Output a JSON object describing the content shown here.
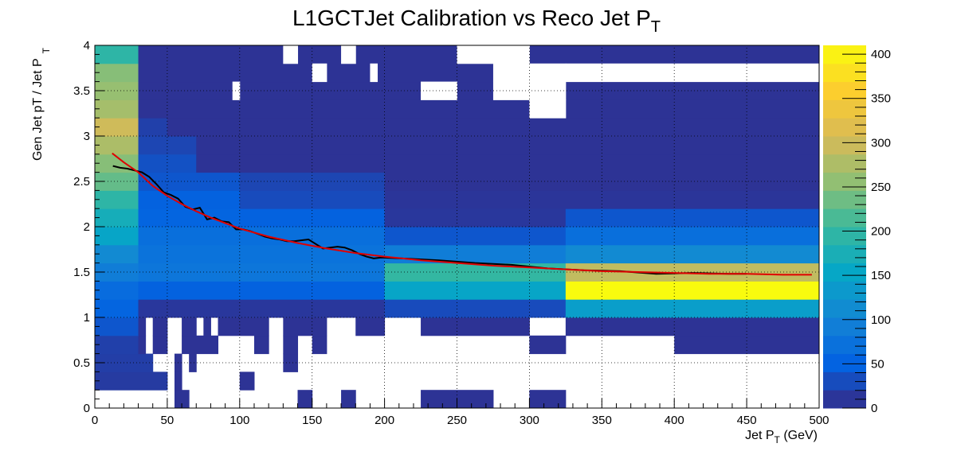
{
  "chart_data": {
    "type": "heatmap",
    "title": "L1GCTJet Calibration vs Reco Jet P",
    "title_subscript": "T",
    "xlabel": "Jet P",
    "xlabel_subscript": "T",
    "xlabel_unit": " (GeV)",
    "ylabel": "Gen Jet pT / Jet P",
    "ylabel_subscript": "T",
    "xlim": [
      0,
      500
    ],
    "ylim": [
      0,
      4
    ],
    "x_ticks": [
      "0",
      "50",
      "100",
      "150",
      "200",
      "250",
      "300",
      "350",
      "400",
      "450",
      "500"
    ],
    "y_ticks": [
      "0",
      "0.5",
      "1",
      "1.5",
      "2",
      "2.5",
      "3",
      "3.5",
      "4"
    ],
    "z_ticks": [
      "0",
      "50",
      "100",
      "150",
      "200",
      "250",
      "300",
      "350",
      "400"
    ],
    "zlim": [
      0,
      410
    ],
    "grid": true,
    "colors": {
      "palette": [
        "#352a87",
        "#0363e1",
        "#1485d4",
        "#06a7c6",
        "#38b99e",
        "#92bf73",
        "#d9ba56",
        "#fcce2e",
        "#f9fb0e"
      ],
      "profile_line": "#000000",
      "fit_line": "#e00000"
    },
    "cells": [
      [
        0,
        10,
        0,
        0.2,
        0
      ],
      [
        10,
        30,
        0,
        0.2,
        0
      ],
      [
        30,
        55,
        0,
        0.2,
        0
      ],
      [
        55,
        65,
        0,
        0.2,
        8
      ],
      [
        65,
        140,
        0,
        0.2,
        0
      ],
      [
        140,
        150,
        0,
        0.2,
        8
      ],
      [
        150,
        170,
        0,
        0.2,
        0
      ],
      [
        170,
        180,
        0,
        0.2,
        8
      ],
      [
        180,
        225,
        0,
        0.2,
        0
      ],
      [
        225,
        275,
        0,
        0.2,
        8
      ],
      [
        275,
        300,
        0,
        0.2,
        0
      ],
      [
        300,
        325,
        0,
        0.2,
        8
      ],
      [
        325,
        500,
        0,
        0.2,
        0
      ],
      [
        0,
        50,
        0.2,
        0.4,
        15
      ],
      [
        50,
        55,
        0.2,
        0.4,
        0
      ],
      [
        55,
        60,
        0.2,
        0.4,
        8
      ],
      [
        60,
        100,
        0.2,
        0.4,
        0
      ],
      [
        100,
        110,
        0.2,
        0.4,
        8
      ],
      [
        110,
        500,
        0.2,
        0.4,
        0
      ],
      [
        0,
        40,
        0.4,
        0.6,
        18
      ],
      [
        40,
        55,
        0.4,
        0.6,
        0
      ],
      [
        55,
        60,
        0.4,
        0.6,
        8
      ],
      [
        60,
        65,
        0.4,
        0.6,
        0
      ],
      [
        65,
        70,
        0.4,
        0.6,
        8
      ],
      [
        70,
        130,
        0.4,
        0.6,
        0
      ],
      [
        130,
        140,
        0.4,
        0.6,
        8
      ],
      [
        140,
        500,
        0.4,
        0.6,
        0
      ],
      [
        0,
        30,
        0.6,
        0.8,
        20
      ],
      [
        30,
        35,
        0.6,
        0.8,
        8
      ],
      [
        35,
        40,
        0.6,
        0.8,
        0
      ],
      [
        40,
        50,
        0.6,
        0.8,
        8
      ],
      [
        50,
        60,
        0.6,
        0.8,
        0
      ],
      [
        60,
        85,
        0.6,
        0.8,
        8
      ],
      [
        85,
        110,
        0.6,
        0.8,
        0
      ],
      [
        110,
        120,
        0.6,
        0.8,
        8
      ],
      [
        120,
        130,
        0.6,
        0.8,
        0
      ],
      [
        130,
        140,
        0.6,
        0.8,
        8
      ],
      [
        140,
        150,
        0.6,
        0.8,
        0
      ],
      [
        150,
        160,
        0.6,
        0.8,
        8
      ],
      [
        160,
        200,
        0.6,
        0.8,
        0
      ],
      [
        200,
        300,
        0.6,
        0.8,
        0
      ],
      [
        300,
        325,
        0.6,
        0.8,
        8
      ],
      [
        325,
        400,
        0.6,
        0.8,
        0
      ],
      [
        400,
        500,
        0.6,
        0.8,
        8
      ],
      [
        0,
        30,
        0.8,
        1.0,
        40
      ],
      [
        30,
        35,
        0.8,
        1.0,
        8
      ],
      [
        35,
        40,
        0.8,
        1.0,
        0
      ],
      [
        40,
        50,
        0.8,
        1.0,
        8
      ],
      [
        50,
        60,
        0.8,
        1.0,
        0
      ],
      [
        60,
        70,
        0.8,
        1.0,
        8
      ],
      [
        70,
        75,
        0.8,
        1.0,
        0
      ],
      [
        75,
        80,
        0.8,
        1.0,
        8
      ],
      [
        80,
        85,
        0.8,
        1.0,
        0
      ],
      [
        85,
        120,
        0.8,
        1.0,
        8
      ],
      [
        120,
        130,
        0.8,
        1.0,
        0
      ],
      [
        130,
        160,
        0.8,
        1.0,
        8
      ],
      [
        160,
        180,
        0.8,
        1.0,
        0
      ],
      [
        180,
        200,
        0.8,
        1.0,
        8
      ],
      [
        200,
        225,
        0.8,
        1.0,
        0
      ],
      [
        225,
        300,
        0.8,
        1.0,
        8
      ],
      [
        300,
        325,
        0.8,
        1.0,
        0
      ],
      [
        325,
        500,
        0.8,
        1.0,
        8
      ],
      [
        0,
        30,
        1.0,
        1.2,
        55
      ],
      [
        30,
        200,
        1.0,
        1.2,
        12
      ],
      [
        200,
        325,
        1.0,
        1.2,
        30
      ],
      [
        325,
        500,
        1.0,
        1.2,
        140
      ],
      [
        0,
        30,
        1.2,
        1.4,
        65
      ],
      [
        30,
        200,
        1.2,
        1.4,
        50
      ],
      [
        200,
        325,
        1.2,
        1.4,
        150
      ],
      [
        325,
        500,
        1.2,
        1.4,
        410
      ],
      [
        0,
        30,
        1.4,
        1.6,
        90
      ],
      [
        30,
        200,
        1.4,
        1.6,
        80
      ],
      [
        200,
        325,
        1.4,
        1.6,
        200
      ],
      [
        325,
        500,
        1.4,
        1.6,
        290
      ],
      [
        0,
        30,
        1.6,
        1.8,
        110
      ],
      [
        30,
        200,
        1.6,
        1.8,
        75
      ],
      [
        200,
        325,
        1.6,
        1.8,
        90
      ],
      [
        325,
        500,
        1.6,
        1.8,
        110
      ],
      [
        0,
        30,
        1.8,
        2.0,
        150
      ],
      [
        30,
        200,
        1.8,
        2.0,
        70
      ],
      [
        200,
        325,
        1.8,
        2.0,
        40
      ],
      [
        325,
        500,
        1.8,
        2.0,
        70
      ],
      [
        0,
        30,
        2.0,
        2.2,
        170
      ],
      [
        30,
        100,
        2.0,
        2.2,
        55
      ],
      [
        100,
        200,
        2.0,
        2.2,
        50
      ],
      [
        200,
        325,
        2.0,
        2.2,
        12
      ],
      [
        325,
        500,
        2.0,
        2.2,
        40
      ],
      [
        0,
        30,
        2.2,
        2.4,
        195
      ],
      [
        30,
        100,
        2.2,
        2.4,
        50
      ],
      [
        100,
        200,
        2.2,
        2.4,
        30
      ],
      [
        200,
        500,
        2.2,
        2.4,
        10
      ],
      [
        0,
        30,
        2.4,
        2.6,
        230
      ],
      [
        30,
        100,
        2.4,
        2.6,
        40
      ],
      [
        100,
        200,
        2.4,
        2.6,
        25
      ],
      [
        200,
        500,
        2.4,
        2.6,
        8
      ],
      [
        0,
        30,
        2.6,
        2.8,
        250
      ],
      [
        30,
        70,
        2.6,
        2.8,
        35
      ],
      [
        70,
        500,
        2.6,
        2.8,
        8
      ],
      [
        0,
        30,
        2.8,
        3.0,
        275
      ],
      [
        30,
        70,
        2.8,
        3.0,
        25
      ],
      [
        70,
        500,
        2.8,
        3.0,
        8
      ],
      [
        0,
        30,
        3.0,
        3.2,
        300
      ],
      [
        30,
        50,
        3.0,
        3.2,
        20
      ],
      [
        50,
        500,
        3.0,
        3.2,
        8
      ],
      [
        0,
        30,
        3.2,
        3.4,
        270
      ],
      [
        30,
        500,
        3.2,
        3.4,
        8
      ],
      [
        0,
        30,
        3.4,
        3.6,
        260
      ],
      [
        30,
        500,
        3.4,
        3.6,
        8
      ],
      [
        0,
        30,
        3.6,
        3.8,
        250
      ],
      [
        30,
        500,
        3.6,
        3.8,
        8
      ],
      [
        0,
        30,
        3.8,
        4.0,
        195
      ],
      [
        30,
        500,
        3.8,
        4.0,
        8
      ]
    ],
    "empty_cells": [
      [
        300,
        325,
        3.2,
        3.4
      ],
      [
        300,
        325,
        3.4,
        3.8
      ],
      [
        225,
        250,
        3.4,
        3.6
      ],
      [
        275,
        300,
        3.4,
        3.6
      ],
      [
        250,
        300,
        3.8,
        4.0
      ],
      [
        325,
        500,
        3.6,
        3.8
      ],
      [
        95,
        100,
        3.4,
        3.6
      ],
      [
        150,
        160,
        3.6,
        3.8
      ],
      [
        190,
        195,
        3.6,
        3.8
      ],
      [
        130,
        140,
        3.8,
        4.0
      ],
      [
        170,
        180,
        3.8,
        4.0
      ],
      [
        275,
        300,
        3.6,
        3.8
      ]
    ],
    "series": [
      {
        "x": [
          12.5,
          17.5,
          22.5,
          27.5,
          32.5,
          37.5,
          42.5,
          47.5,
          52.5,
          57.5,
          62.5,
          67.5,
          72.5,
          77.5,
          82.5,
          87.5,
          92.5,
          97.5,
          102.5,
          107.5,
          112.5,
          117.5,
          122.5,
          127.5,
          132.5,
          137.5,
          142.5,
          147.5,
          152.5,
          157.5,
          162.5,
          167.5,
          172.5,
          177.5,
          182.5,
          187.5,
          192.5,
          197.5,
          212.5,
          237.5,
          262.5,
          287.5,
          312.5,
          337.5,
          362.5,
          387.5,
          412.5,
          437.5,
          450
        ],
        "values": [
          2.67,
          2.65,
          2.64,
          2.62,
          2.6,
          2.55,
          2.47,
          2.38,
          2.35,
          2.31,
          2.22,
          2.19,
          2.21,
          2.08,
          2.1,
          2.06,
          2.05,
          1.97,
          1.97,
          1.95,
          1.92,
          1.89,
          1.87,
          1.86,
          1.84,
          1.84,
          1.85,
          1.86,
          1.81,
          1.76,
          1.77,
          1.78,
          1.77,
          1.74,
          1.7,
          1.67,
          1.65,
          1.66,
          1.65,
          1.63,
          1.6,
          1.58,
          1.54,
          1.52,
          1.51,
          1.48,
          1.49,
          1.48,
          1.48
        ]
      },
      {
        "x": [
          12,
          20,
          30,
          40,
          50,
          60,
          70,
          80,
          90,
          100,
          120,
          140,
          160,
          180,
          200,
          225,
          250,
          275,
          300,
          325,
          350,
          375,
          400,
          425,
          450,
          475,
          495
        ],
        "values": [
          2.81,
          2.71,
          2.6,
          2.45,
          2.34,
          2.25,
          2.17,
          2.1,
          2.04,
          1.98,
          1.89,
          1.82,
          1.76,
          1.71,
          1.67,
          1.63,
          1.6,
          1.57,
          1.55,
          1.53,
          1.51,
          1.5,
          1.49,
          1.48,
          1.48,
          1.47,
          1.47
        ]
      }
    ]
  }
}
